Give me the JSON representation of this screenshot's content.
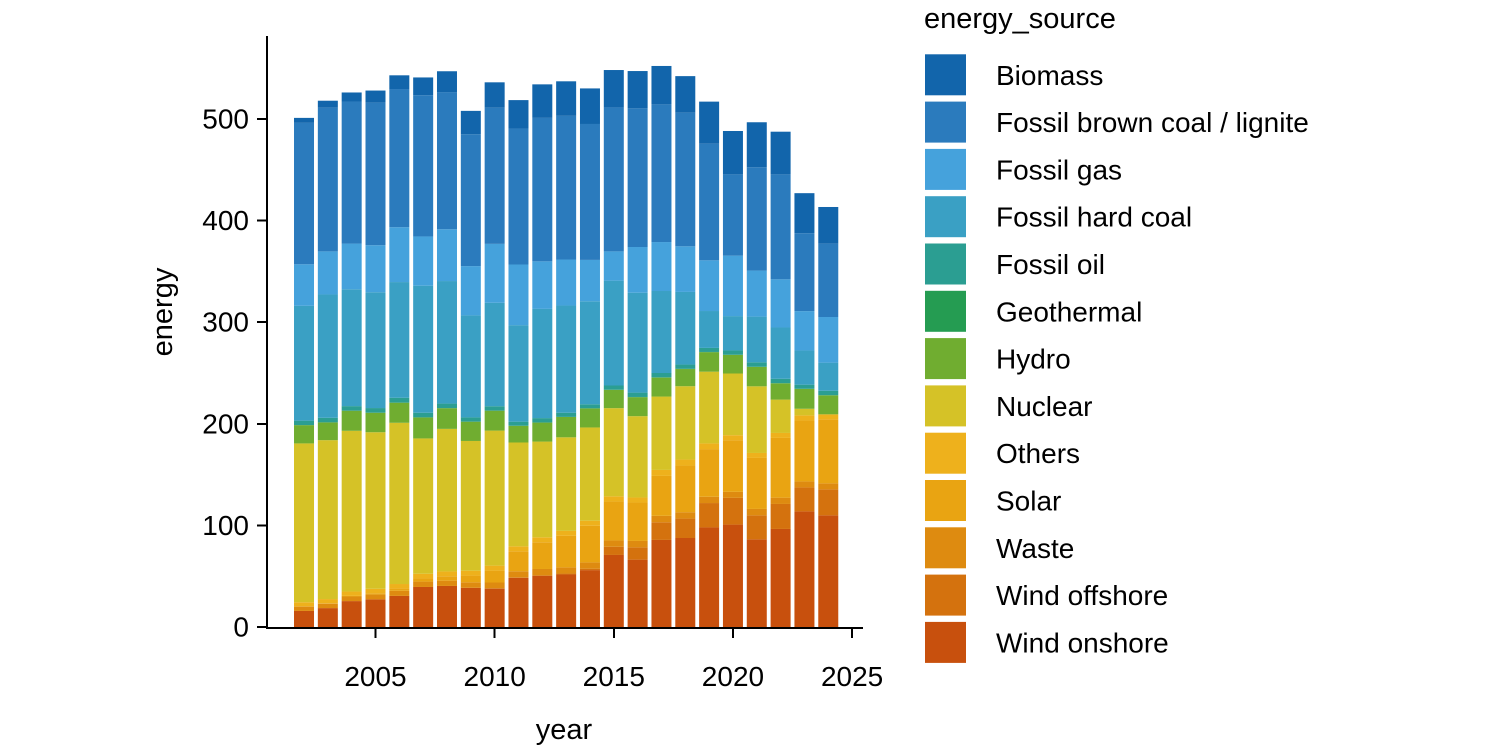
{
  "chart_data": {
    "type": "bar",
    "stacked": true,
    "title": "",
    "xlabel": "year",
    "ylabel": "energy",
    "legend_title": "energy_source",
    "legend_position": "right",
    "grid": false,
    "background": "#ffffff",
    "axis_color": "#000000",
    "x": [
      2002,
      2003,
      2004,
      2005,
      2006,
      2007,
      2008,
      2009,
      2010,
      2011,
      2012,
      2013,
      2014,
      2015,
      2016,
      2017,
      2018,
      2019,
      2020,
      2021,
      2022,
      2023,
      2024
    ],
    "x_ticks": [
      2005,
      2010,
      2015,
      2020,
      2025
    ],
    "y_ticks": [
      0,
      100,
      200,
      300,
      400,
      500
    ],
    "ylim": [
      0,
      575
    ],
    "stack_order_note": "stacked bottom-to-top in reverse legend order: Wind onshore at bottom, Biomass on top",
    "series": [
      {
        "name": "Biomass",
        "color": "#1265ab",
        "values": [
          4.9,
          6.9,
          8.9,
          11.9,
          13.5,
          17.5,
          20.5,
          23.0,
          25.0,
          28.0,
          33.0,
          34.0,
          35.0,
          36.8,
          36.7,
          37.8,
          36.0,
          41.4,
          42.7,
          44.3,
          42.0,
          39.4,
          36.1
        ]
      },
      {
        "name": "Fossil brown coal / lignite",
        "color": "#2b7bbd",
        "values": [
          139.2,
          141.4,
          139.8,
          140.3,
          136.0,
          139.0,
          135.0,
          129.8,
          134.0,
          133.8,
          141.2,
          141.4,
          133.8,
          141.7,
          136.5,
          135.5,
          131.5,
          114.8,
          80.0,
          101.7,
          103.3,
          76.7,
          72.2
        ]
      },
      {
        "name": "Fossil gas",
        "color": "#45a2dc",
        "values": [
          40.9,
          42.4,
          45.0,
          46.3,
          54.0,
          48.5,
          51.0,
          48.5,
          58.0,
          59.7,
          46.8,
          45.3,
          40.7,
          28.8,
          45.0,
          48.2,
          44.9,
          49.9,
          59.5,
          45.3,
          47.4,
          38.7,
          44.9
        ]
      },
      {
        "name": "Fossil hard coal",
        "color": "#3aa0c4",
        "values": [
          113.0,
          121.4,
          115.0,
          114.0,
          113.9,
          125.0,
          120.6,
          100.4,
          101.8,
          95.0,
          107.5,
          105.5,
          101.4,
          103.2,
          98.3,
          80.7,
          71.5,
          36.3,
          33.8,
          45.0,
          50.5,
          33.7,
          27.7
        ]
      },
      {
        "name": "Fossil oil",
        "color": "#2b9e92",
        "values": [
          4.4,
          4.5,
          4.5,
          4.6,
          4.8,
          4.6,
          4.5,
          4.2,
          4.3,
          4.0,
          4.3,
          4.1,
          4.0,
          4.1,
          4.3,
          4.3,
          4.2,
          4.0,
          4.2,
          4.3,
          4.3,
          4.0,
          4.3
        ]
      },
      {
        "name": "Geothermal",
        "color": "#259c52",
        "values": [
          0,
          0,
          0,
          0,
          0,
          0,
          0,
          0,
          0.1,
          0.1,
          0.1,
          0.1,
          0.1,
          0.2,
          0.2,
          0.2,
          0.2,
          0.2,
          0.2,
          0.2,
          0.2,
          0.2,
          0.2
        ]
      },
      {
        "name": "Hydro",
        "color": "#70ad30",
        "values": [
          18.0,
          17.5,
          19.8,
          19.2,
          19.8,
          20.7,
          20.4,
          19.0,
          19.6,
          16.4,
          18.7,
          20.0,
          18.7,
          18.0,
          18.7,
          18.7,
          16.9,
          19.2,
          18.3,
          19.1,
          16.0,
          19.5,
          18.7
        ]
      },
      {
        "name": "Nuclear",
        "color": "#d5c227",
        "values": [
          156.3,
          156.4,
          158.2,
          154.1,
          158.7,
          133.2,
          140.3,
          127.7,
          132.9,
          102.2,
          94.2,
          92.1,
          91.8,
          86.8,
          80.0,
          72.2,
          72.2,
          70.6,
          60.7,
          65.6,
          32.8,
          6.5,
          0
        ]
      },
      {
        "name": "Others",
        "color": "#eeb11c",
        "values": [
          4.1,
          4.2,
          4.3,
          4.4,
          4.5,
          4.6,
          4.7,
          4.8,
          4.9,
          4.9,
          4.9,
          4.9,
          4.9,
          5.0,
          5.0,
          5.9,
          5.9,
          5.6,
          4.9,
          4.9,
          4.9,
          5.0,
          4.9
        ]
      },
      {
        "name": "Solar",
        "color": "#e9a412",
        "values": [
          0.2,
          0.3,
          0.6,
          1.3,
          2.2,
          3.1,
          4.4,
          6.6,
          11.7,
          19.6,
          26.3,
          31.0,
          36.1,
          38.4,
          37.8,
          39.3,
          45.9,
          46.9,
          50.9,
          50.2,
          58.8,
          60.0,
          63.0
        ]
      },
      {
        "name": "Waste",
        "color": "#de8b10",
        "values": [
          4.3,
          4.4,
          4.5,
          4.7,
          5.0,
          5.3,
          5.2,
          5.4,
          5.8,
          6.0,
          6.2,
          6.1,
          6.2,
          6.2,
          6.3,
          6.3,
          6.3,
          6.2,
          5.9,
          6.3,
          6.2,
          5.9,
          5.9
        ]
      },
      {
        "name": "Wind offshore",
        "color": "#d4720e",
        "values": [
          0,
          0,
          0,
          0,
          0,
          0,
          0,
          0,
          0.2,
          0.6,
          0.7,
          0.9,
          1.4,
          8.1,
          12.1,
          17.4,
          19.1,
          24.0,
          26.3,
          23.6,
          24.6,
          23.6,
          25.6
        ]
      },
      {
        "name": "Wind onshore",
        "color": "#c8500d",
        "values": [
          15.8,
          18.6,
          25.5,
          27.2,
          30.6,
          39.4,
          40.4,
          38.6,
          37.8,
          48.3,
          50.2,
          51.7,
          56.0,
          70.9,
          66.3,
          85.7,
          87.6,
          98.0,
          100.8,
          86.3,
          96.5,
          113.8,
          109.9
        ]
      }
    ]
  }
}
